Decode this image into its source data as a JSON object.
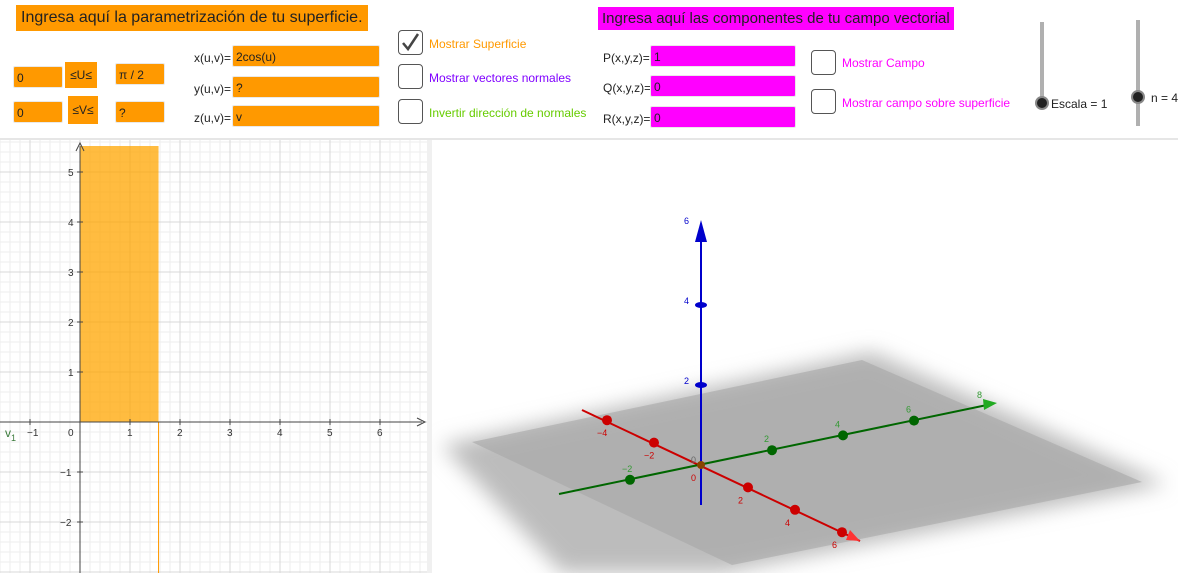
{
  "parametrization": {
    "banner": "Ingresa aquí la parametrización de tu superficie.",
    "u_min": "0",
    "u_label": "≤U≤",
    "u_max": "π / 2",
    "v_min": "0",
    "v_label": "≤V≤",
    "v_max": "?",
    "x_label": "x(u,v)=",
    "x_value": "2cos(u)",
    "y_label": "y(u,v)=",
    "y_value": "?",
    "z_label": "z(u,v)=",
    "z_value": "v"
  },
  "options": {
    "show_surface": {
      "label": "Mostrar Superficie",
      "checked": true,
      "color": "#ff9900"
    },
    "show_normals": {
      "label": "Mostrar vectores normales",
      "checked": false,
      "color": "#7f00ff"
    },
    "invert_normals": {
      "label": "Invertir dirección de normales",
      "checked": false,
      "color": "#66cc00"
    }
  },
  "field": {
    "banner": "Ingresa aquí las componentes de tu campo vectorial",
    "p_label": "P(x,y,z)=",
    "p_value": "1",
    "q_label": "Q(x,y,z)=",
    "q_value": "0",
    "r_label": "R(x,y,z)=",
    "r_value": "0",
    "show_field": {
      "label": "Mostrar Campo",
      "checked": false,
      "color": "#ff00ff"
    },
    "show_field_on_surface": {
      "label": "Mostrar campo sobre superficie",
      "checked": false,
      "color": "#ff00ff"
    }
  },
  "sliders": {
    "scale_label": "Escala = 1",
    "n_label": "n = 4"
  },
  "graph2d": {
    "x_ticks": [
      "−1",
      "0",
      "1",
      "2",
      "3",
      "4",
      "5",
      "6"
    ],
    "y_ticks": [
      "5",
      "4",
      "3",
      "2",
      "1",
      "−1",
      "−2"
    ],
    "axis_label": "v",
    "axis_label_sub": "1",
    "region_u": [
      0,
      1.5708
    ],
    "region_color": "#ffa500"
  },
  "graph3d": {
    "z_ticks": [
      "2",
      "4",
      "6"
    ],
    "x_ticks": [
      "−4",
      "−2",
      "0",
      "2",
      "4",
      "6"
    ],
    "y_ticks": [
      "−2",
      "0",
      "2",
      "4",
      "6",
      "8"
    ],
    "colors": {
      "x": "#cc0000",
      "y": "#006600",
      "z": "#0000cc"
    }
  }
}
